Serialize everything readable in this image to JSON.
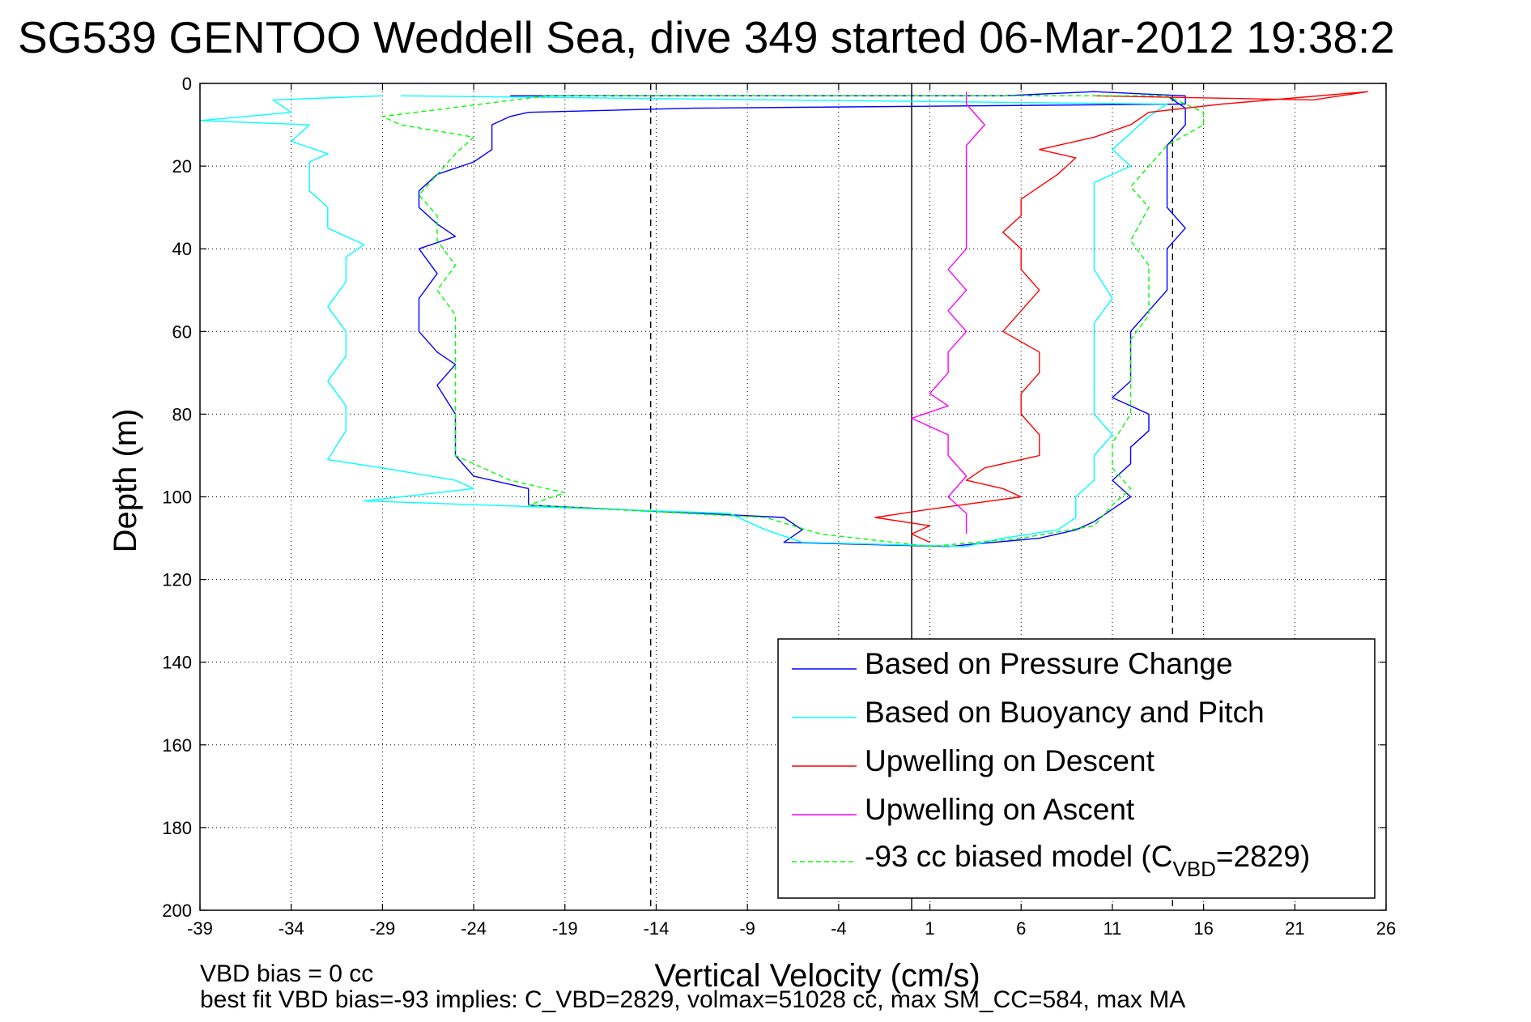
{
  "chart_data": {
    "type": "line",
    "title": "SG539 GENTOO Weddell Sea, dive 349 started 06-Mar-2012 19:38:2",
    "xlabel": "Vertical Velocity (cm/s)",
    "ylabel": "Depth (m)",
    "xlim": [
      -39,
      26
    ],
    "ylim": [
      0,
      200
    ],
    "y_reversed": true,
    "xticks": [
      -39,
      -34,
      -29,
      -24,
      -19,
      -14,
      -9,
      -4,
      1,
      6,
      11,
      16,
      21,
      26
    ],
    "yticks": [
      0,
      20,
      40,
      60,
      80,
      100,
      120,
      140,
      160,
      180,
      200
    ],
    "grid": true,
    "legend_position": "bottom-right",
    "reference_lines": [
      {
        "x": 0,
        "style": "solid"
      },
      {
        "x": -14.3,
        "style": "dashed"
      },
      {
        "x": 14.3,
        "style": "dashed"
      }
    ],
    "notes": [
      "VBD bias = 0 cc",
      "best fit VBD bias=-93 implies: C_VBD=2829, volmax=51028 cc, max SM_CC=584, max MA"
    ],
    "series": [
      {
        "name": "Based on Pressure Change",
        "color": "#0000ff",
        "style": "solid",
        "points": [
          [
            -22,
            3
          ],
          [
            5,
            3
          ],
          [
            10,
            2
          ],
          [
            15,
            3
          ],
          [
            15,
            5
          ],
          [
            -12,
            6
          ],
          [
            -21,
            7
          ],
          [
            -22,
            8
          ],
          [
            -23,
            10
          ],
          [
            -23,
            16
          ],
          [
            -24,
            19
          ],
          [
            -26,
            22
          ],
          [
            -27,
            26
          ],
          [
            -27,
            30
          ],
          [
            -26,
            34
          ],
          [
            -25,
            37
          ],
          [
            -27,
            40
          ],
          [
            -26,
            46
          ],
          [
            -27,
            52
          ],
          [
            -27,
            60
          ],
          [
            -26,
            65
          ],
          [
            -25,
            68
          ],
          [
            -26,
            73
          ],
          [
            -25,
            80
          ],
          [
            -25,
            86
          ],
          [
            -25,
            90
          ],
          [
            -24,
            95
          ],
          [
            -21,
            98
          ],
          [
            -21,
            102
          ],
          [
            -7,
            105
          ],
          [
            -6,
            108
          ],
          [
            -7,
            111
          ],
          [
            2,
            112
          ],
          [
            7,
            110
          ],
          [
            9,
            108
          ],
          [
            10,
            106
          ],
          [
            11,
            103
          ],
          [
            12,
            100
          ],
          [
            11,
            96
          ],
          [
            12,
            92
          ],
          [
            12,
            88
          ],
          [
            13,
            84
          ],
          [
            13,
            80
          ],
          [
            11,
            76
          ],
          [
            12,
            72
          ],
          [
            12,
            68
          ],
          [
            12,
            64
          ],
          [
            12,
            60
          ],
          [
            13,
            55
          ],
          [
            14,
            50
          ],
          [
            14,
            45
          ],
          [
            14,
            40
          ],
          [
            15,
            35
          ],
          [
            14,
            30
          ],
          [
            14,
            25
          ],
          [
            14,
            20
          ],
          [
            14,
            15
          ],
          [
            15,
            10
          ],
          [
            15,
            6
          ],
          [
            14,
            3
          ]
        ]
      },
      {
        "name": "Based on Buoyancy and Pitch",
        "color": "#00ffff",
        "style": "solid",
        "points": [
          [
            -29,
            3
          ],
          [
            -35,
            4
          ],
          [
            -34,
            7
          ],
          [
            -39,
            9
          ],
          [
            -33,
            10
          ],
          [
            -34,
            14
          ],
          [
            -32,
            17
          ],
          [
            -33,
            19
          ],
          [
            -33,
            22
          ],
          [
            -33,
            26
          ],
          [
            -32,
            30
          ],
          [
            -32,
            35
          ],
          [
            -30,
            39
          ],
          [
            -31,
            42
          ],
          [
            -31,
            48
          ],
          [
            -32,
            54
          ],
          [
            -31,
            60
          ],
          [
            -31,
            66
          ],
          [
            -32,
            72
          ],
          [
            -31,
            78
          ],
          [
            -31,
            84
          ],
          [
            -32,
            91
          ],
          [
            -29,
            93
          ],
          [
            -25,
            96
          ],
          [
            -24,
            98
          ],
          [
            -30,
            101
          ],
          [
            -10,
            104
          ],
          [
            -8,
            108
          ],
          [
            -6,
            111
          ],
          [
            3,
            112
          ],
          [
            5,
            110
          ],
          [
            8,
            108
          ],
          [
            9,
            105
          ],
          [
            9,
            100
          ],
          [
            10,
            96
          ],
          [
            10,
            90
          ],
          [
            11,
            85
          ],
          [
            10,
            80
          ],
          [
            10,
            75
          ],
          [
            10,
            70
          ],
          [
            10,
            65
          ],
          [
            10,
            58
          ],
          [
            11,
            52
          ],
          [
            10,
            45
          ],
          [
            10,
            38
          ],
          [
            10,
            30
          ],
          [
            10,
            24
          ],
          [
            12,
            20
          ],
          [
            11,
            16
          ],
          [
            12,
            12
          ],
          [
            13,
            8
          ],
          [
            14,
            5
          ],
          [
            -28,
            3
          ]
        ]
      },
      {
        "name": "Upwelling on Descent",
        "color": "#ff0000",
        "style": "solid",
        "points": [
          [
            10,
            3
          ],
          [
            22,
            4
          ],
          [
            25,
            2
          ],
          [
            17,
            5
          ],
          [
            13,
            7
          ],
          [
            12,
            10
          ],
          [
            10,
            13
          ],
          [
            7,
            16
          ],
          [
            9,
            18
          ],
          [
            8,
            22
          ],
          [
            7,
            25
          ],
          [
            6,
            28
          ],
          [
            6,
            32
          ],
          [
            5,
            36
          ],
          [
            6,
            40
          ],
          [
            6,
            45
          ],
          [
            7,
            50
          ],
          [
            6,
            55
          ],
          [
            5,
            60
          ],
          [
            7,
            65
          ],
          [
            7,
            70
          ],
          [
            6,
            75
          ],
          [
            6,
            80
          ],
          [
            7,
            85
          ],
          [
            7,
            90
          ],
          [
            4,
            93
          ],
          [
            3,
            96
          ],
          [
            5,
            98
          ],
          [
            6,
            100
          ],
          [
            1,
            103
          ],
          [
            -2,
            105
          ],
          [
            1,
            107
          ],
          [
            0,
            109
          ],
          [
            1,
            111
          ]
        ]
      },
      {
        "name": "Upwelling on Ascent",
        "color": "#ff00ff",
        "style": "solid",
        "points": [
          [
            3,
            109
          ],
          [
            3,
            104
          ],
          [
            2,
            100
          ],
          [
            3,
            95
          ],
          [
            2,
            90
          ],
          [
            2,
            85
          ],
          [
            0,
            81
          ],
          [
            2,
            78
          ],
          [
            1,
            75
          ],
          [
            2,
            70
          ],
          [
            2,
            65
          ],
          [
            3,
            60
          ],
          [
            2,
            55
          ],
          [
            3,
            50
          ],
          [
            2,
            45
          ],
          [
            3,
            40
          ],
          [
            3,
            35
          ],
          [
            3,
            30
          ],
          [
            3,
            25
          ],
          [
            3,
            20
          ],
          [
            3,
            15
          ],
          [
            4,
            10
          ],
          [
            3,
            5
          ],
          [
            3,
            2
          ]
        ]
      },
      {
        "name": "-93 cc biased model (C_VBD=2829)",
        "color": "#00ff00",
        "style": "dashed",
        "points": [
          [
            -20,
            3
          ],
          [
            -29,
            8
          ],
          [
            -28,
            10
          ],
          [
            -24,
            13
          ],
          [
            -25,
            17
          ],
          [
            -26,
            22
          ],
          [
            -27,
            27
          ],
          [
            -26,
            32
          ],
          [
            -26,
            38
          ],
          [
            -25,
            44
          ],
          [
            -26,
            50
          ],
          [
            -25,
            56
          ],
          [
            -25,
            62
          ],
          [
            -25,
            68
          ],
          [
            -25,
            75
          ],
          [
            -25,
            82
          ],
          [
            -25,
            90
          ],
          [
            -22,
            96
          ],
          [
            -19,
            99
          ],
          [
            -21,
            102
          ],
          [
            -8,
            105
          ],
          [
            -5,
            109
          ],
          [
            1,
            112
          ],
          [
            6,
            110
          ],
          [
            10,
            107
          ],
          [
            11,
            102
          ],
          [
            12,
            98
          ],
          [
            11,
            93
          ],
          [
            11,
            87
          ],
          [
            12,
            80
          ],
          [
            12,
            74
          ],
          [
            12,
            68
          ],
          [
            12,
            62
          ],
          [
            13,
            56
          ],
          [
            13,
            50
          ],
          [
            13,
            44
          ],
          [
            12,
            38
          ],
          [
            13,
            30
          ],
          [
            12,
            25
          ],
          [
            13,
            20
          ],
          [
            14,
            15
          ],
          [
            16,
            10
          ],
          [
            16,
            7
          ],
          [
            14,
            3
          ],
          [
            -20,
            3
          ]
        ]
      }
    ]
  },
  "legend": {
    "label_prefix": "-93 cc biased model (C",
    "sub": "VBD",
    "label_suffix": "=2829)"
  }
}
